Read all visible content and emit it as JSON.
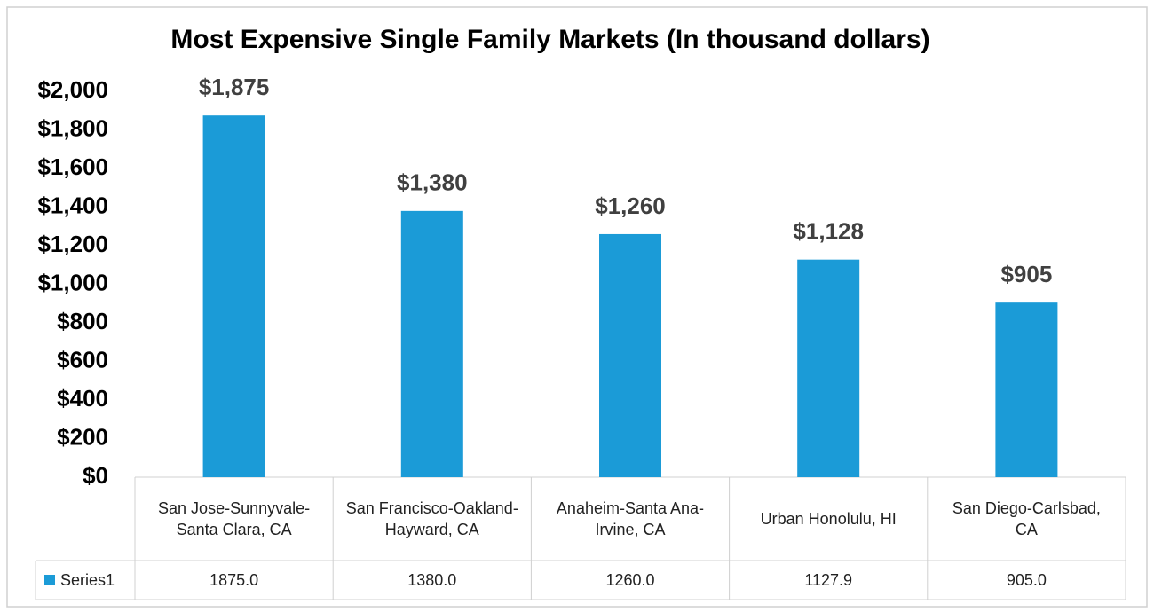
{
  "chart_data": {
    "type": "bar",
    "title": "Most Expensive Single Family Markets (In thousand dollars)",
    "categories": [
      "San Jose-Sunnyvale-Santa Clara, CA",
      "San Francisco-Oakland-Hayward, CA",
      "Anaheim-Santa Ana-Irvine, CA",
      "Urban Honolulu, HI",
      "San Diego-Carlsbad, CA"
    ],
    "series": [
      {
        "name": "Series1",
        "color": "#1b9bd7",
        "values": [
          1875,
          1380,
          1260,
          1127.9,
          905
        ],
        "value_labels": [
          "$1,875",
          "$1,380",
          "$1,260",
          "$1,128",
          "$905"
        ],
        "table_values": [
          "1875.0",
          "1380.0",
          "1260.0",
          "1127.9",
          "905.0"
        ]
      }
    ],
    "ylim": [
      0,
      2000
    ],
    "yticks": [
      {
        "value": 0,
        "label": "$0"
      },
      {
        "value": 200,
        "label": "$200"
      },
      {
        "value": 400,
        "label": "$400"
      },
      {
        "value": 600,
        "label": "$600"
      },
      {
        "value": 800,
        "label": "$800"
      },
      {
        "value": 1000,
        "label": "$1,000"
      },
      {
        "value": 1200,
        "label": "$1,200"
      },
      {
        "value": 1400,
        "label": "$1,400"
      },
      {
        "value": 1600,
        "label": "$1,600"
      },
      {
        "value": 1800,
        "label": "$1,800"
      },
      {
        "value": 2000,
        "label": "$2,000"
      }
    ],
    "grid": false
  }
}
